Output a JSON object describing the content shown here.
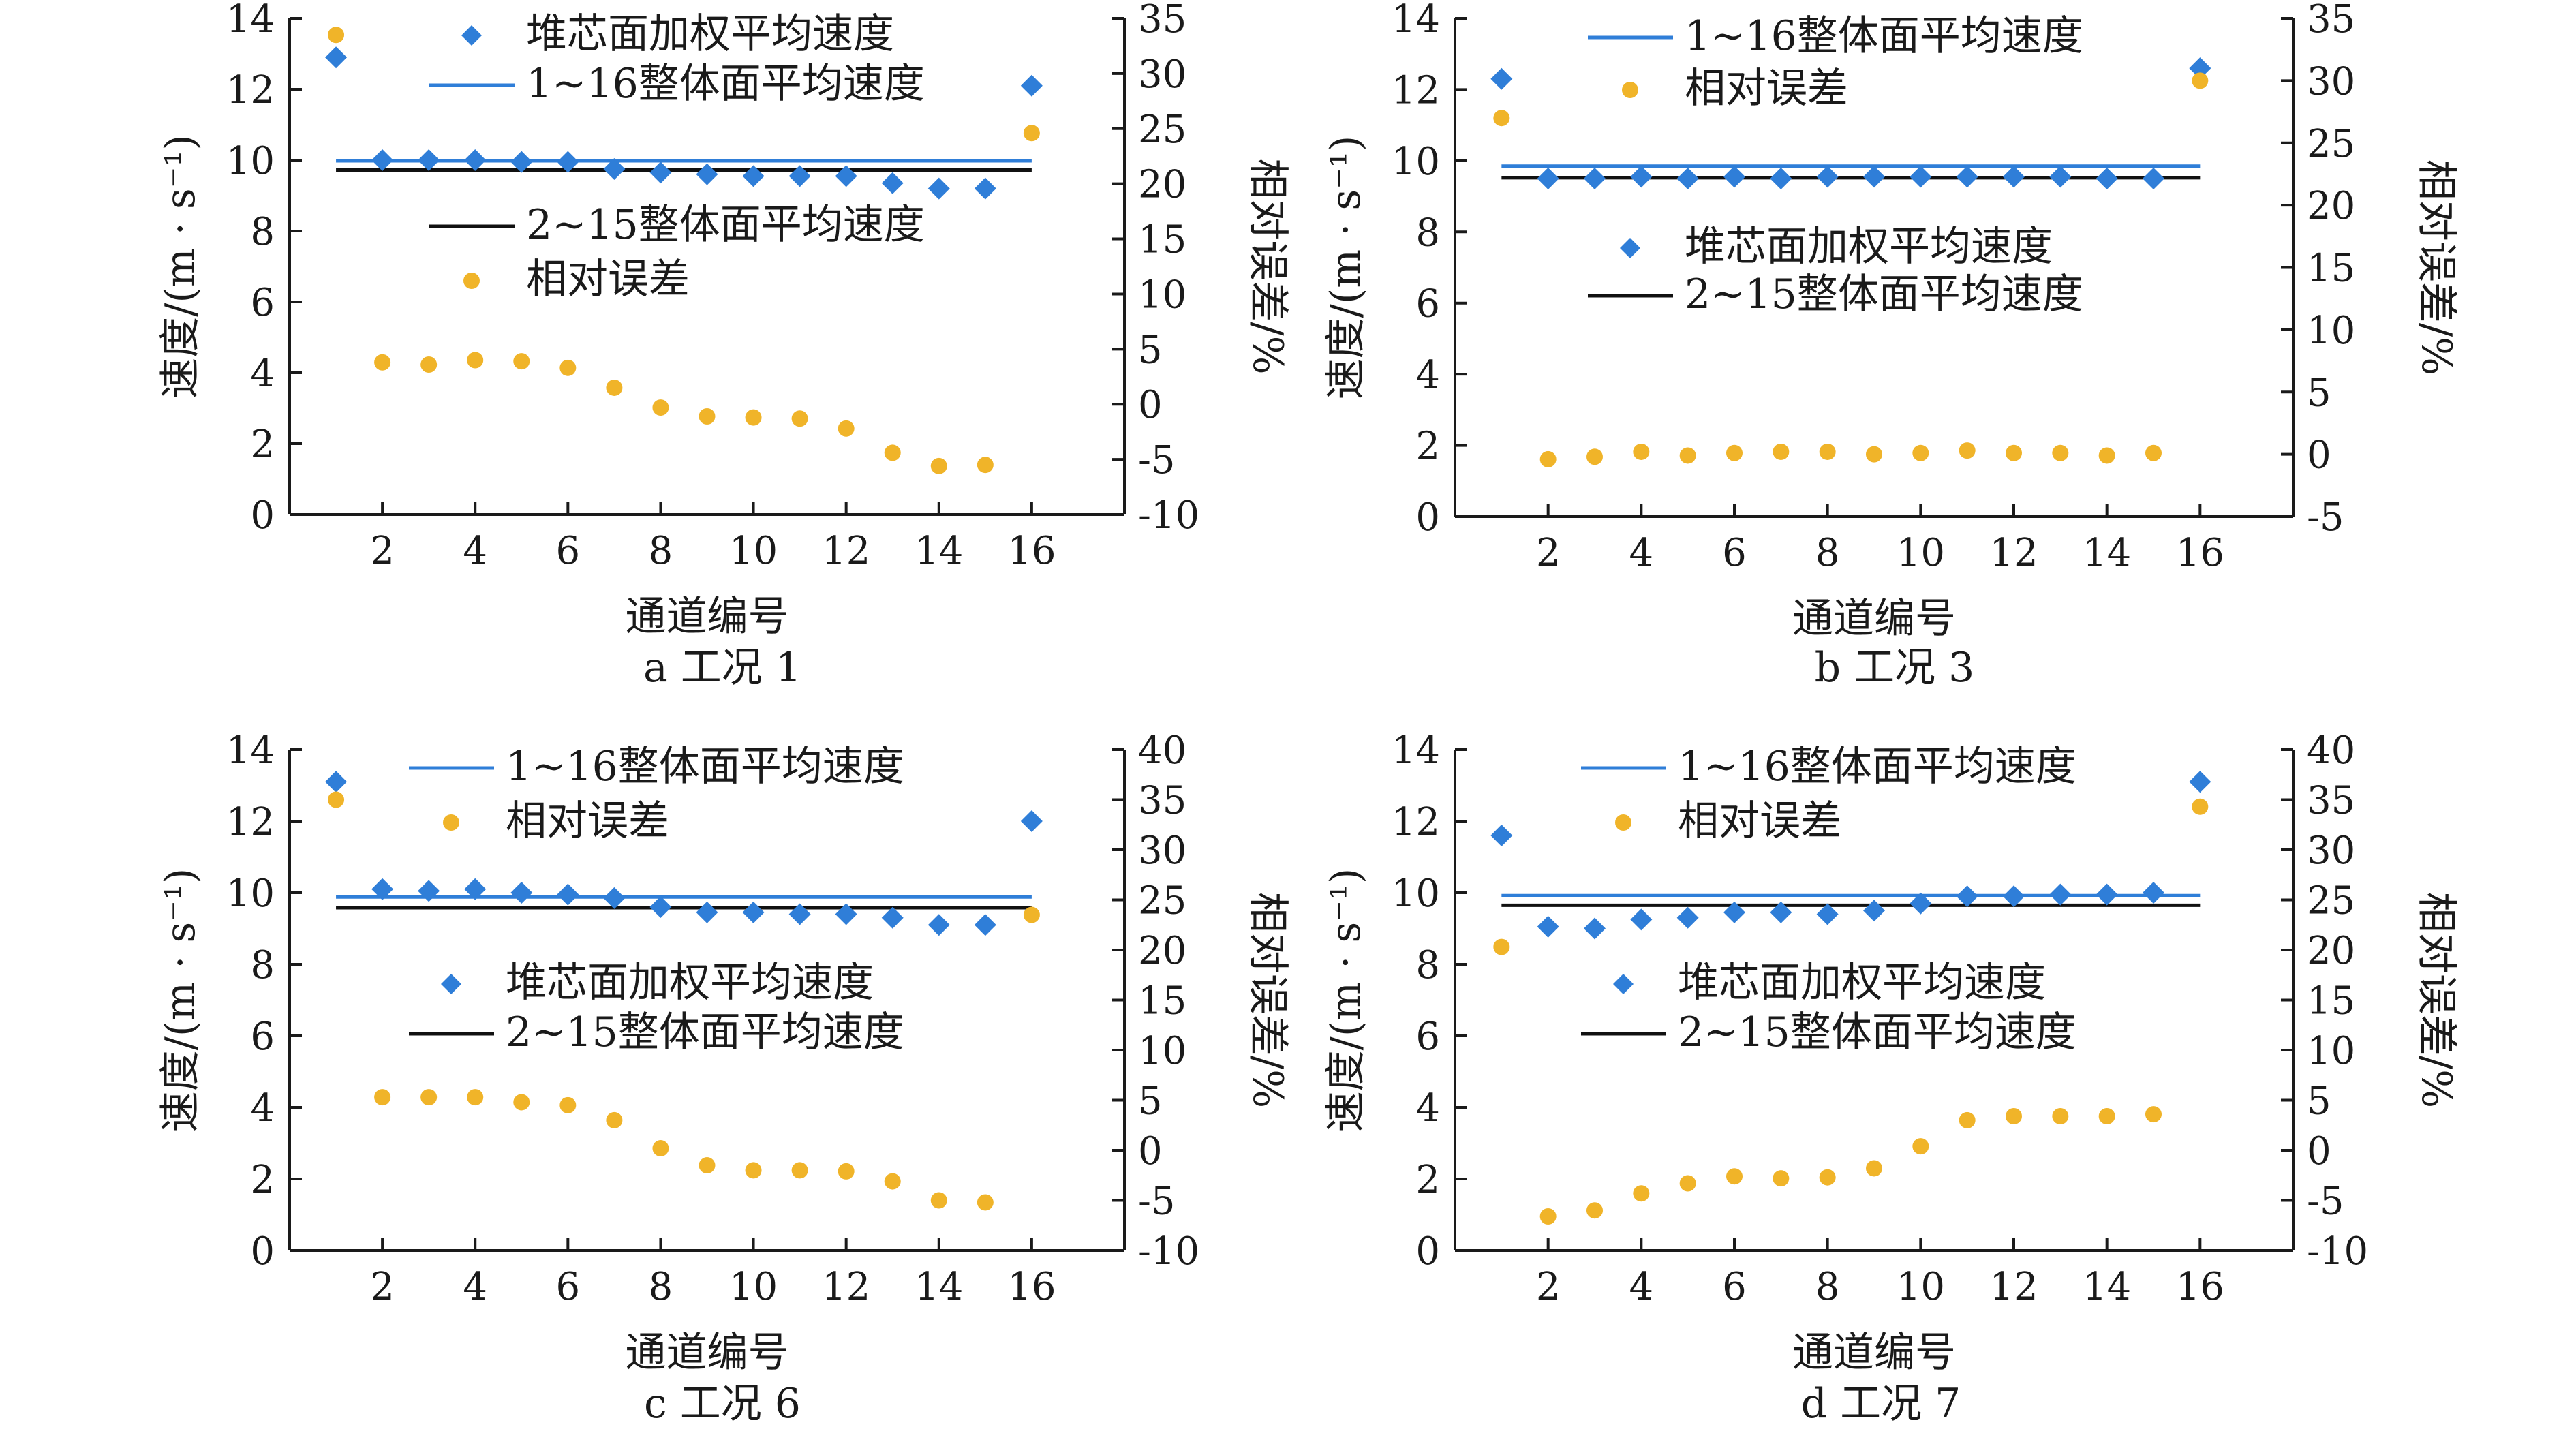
{
  "colors": {
    "overall_1_16": "#2f7ed8",
    "overall_2_15": "#111111",
    "weighted": "#2f7ed8",
    "error": "#f0b429",
    "axis": "#1a1a1a"
  },
  "chart_data": [
    {
      "type": "scatter",
      "caption": "a  工况 1",
      "xlabel": "通道编号",
      "ylabel": "速度/(m · s⁻¹)",
      "y2label": "相对误差/%",
      "xlim": [
        0,
        18
      ],
      "xticks": [
        2,
        4,
        6,
        8,
        10,
        12,
        14,
        16
      ],
      "ylim": [
        0,
        14
      ],
      "yticks": [
        0,
        2,
        4,
        6,
        8,
        10,
        12,
        14
      ],
      "y2lim": [
        -10,
        35
      ],
      "y2ticks": [
        -10,
        -5,
        0,
        5,
        10,
        15,
        20,
        25,
        30,
        35
      ],
      "legend": [
        {
          "key": "weighted",
          "label": "堆芯面加权平均速度",
          "marker": "diamond"
        },
        {
          "key": "overall_1_16",
          "label": "1~16整体面平均速度",
          "marker": "line"
        },
        {
          "key": "overall_2_15",
          "label": "2~15整体面平均速度",
          "marker": "line"
        },
        {
          "key": "error",
          "label": "相对误差",
          "marker": "circle"
        }
      ],
      "series": {
        "weighted": {
          "x": [
            1,
            2,
            3,
            4,
            5,
            6,
            7,
            8,
            9,
            10,
            11,
            12,
            13,
            14,
            15,
            16
          ],
          "y": [
            12.9,
            10.0,
            10.0,
            10.0,
            9.95,
            9.95,
            9.75,
            9.65,
            9.6,
            9.55,
            9.55,
            9.55,
            9.35,
            9.2,
            9.2,
            12.1
          ]
        },
        "overall_1_16": {
          "x": [
            1,
            16
          ],
          "y": [
            9.98,
            9.98
          ]
        },
        "overall_2_15": {
          "x": [
            1,
            16
          ],
          "y": [
            9.72,
            9.72
          ]
        },
        "error": {
          "x": [
            1,
            2,
            3,
            4,
            5,
            6,
            7,
            8,
            9,
            10,
            11,
            12,
            13,
            14,
            15,
            16
          ],
          "y": [
            33.5,
            3.8,
            3.6,
            4.0,
            3.9,
            3.3,
            1.5,
            -0.3,
            -1.1,
            -1.2,
            -1.3,
            -2.2,
            -4.4,
            -5.6,
            -5.5,
            24.6
          ]
        }
      }
    },
    {
      "type": "scatter",
      "caption": "b  工况 3",
      "xlabel": "通道编号",
      "ylabel": "速度/(m · s⁻¹)",
      "y2label": "相对误差/%",
      "xlim": [
        0,
        18
      ],
      "xticks": [
        2,
        4,
        6,
        8,
        10,
        12,
        14,
        16
      ],
      "ylim": [
        0,
        14
      ],
      "yticks": [
        0,
        2,
        4,
        6,
        8,
        10,
        12,
        14
      ],
      "y2lim": [
        -5,
        35
      ],
      "y2ticks": [
        -5,
        0,
        5,
        10,
        15,
        20,
        25,
        30,
        35
      ],
      "legend": [
        {
          "key": "overall_1_16",
          "label": "1~16整体面平均速度",
          "marker": "line"
        },
        {
          "key": "error",
          "label": "相对误差",
          "marker": "circle"
        },
        {
          "key": "weighted",
          "label": "堆芯面加权平均速度",
          "marker": "diamond"
        },
        {
          "key": "overall_2_15",
          "label": "2~15整体面平均速度",
          "marker": "line"
        }
      ],
      "series": {
        "weighted": {
          "x": [
            1,
            2,
            3,
            4,
            5,
            6,
            7,
            8,
            9,
            10,
            11,
            12,
            13,
            14,
            15,
            16
          ],
          "y": [
            12.3,
            9.5,
            9.5,
            9.55,
            9.5,
            9.55,
            9.5,
            9.55,
            9.55,
            9.55,
            9.55,
            9.55,
            9.55,
            9.5,
            9.5,
            12.6
          ]
        },
        "overall_1_16": {
          "x": [
            1,
            16
          ],
          "y": [
            9.85,
            9.85
          ]
        },
        "overall_2_15": {
          "x": [
            1,
            16
          ],
          "y": [
            9.52,
            9.52
          ]
        },
        "error": {
          "x": [
            1,
            2,
            3,
            4,
            5,
            6,
            7,
            8,
            9,
            10,
            11,
            12,
            13,
            14,
            15,
            16
          ],
          "y": [
            27.0,
            -0.4,
            -0.2,
            0.2,
            -0.1,
            0.1,
            0.2,
            0.2,
            0.0,
            0.1,
            0.3,
            0.1,
            0.1,
            -0.1,
            0.1,
            30.0
          ]
        }
      }
    },
    {
      "type": "scatter",
      "caption": "c  工况 6",
      "xlabel": "通道编号",
      "ylabel": "速度/(m · s⁻¹)",
      "y2label": "相对误差/%",
      "xlim": [
        0,
        18
      ],
      "xticks": [
        2,
        4,
        6,
        8,
        10,
        12,
        14,
        16
      ],
      "ylim": [
        0,
        14
      ],
      "yticks": [
        0,
        2,
        4,
        6,
        8,
        10,
        12,
        14
      ],
      "y2lim": [
        -10,
        40
      ],
      "y2ticks": [
        -10,
        -5,
        0,
        5,
        10,
        15,
        20,
        25,
        30,
        35,
        40
      ],
      "legend": [
        {
          "key": "overall_1_16",
          "label": "1~16整体面平均速度",
          "marker": "line"
        },
        {
          "key": "error",
          "label": "相对误差",
          "marker": "circle"
        },
        {
          "key": "weighted",
          "label": "堆芯面加权平均速度",
          "marker": "diamond"
        },
        {
          "key": "overall_2_15",
          "label": "2~15整体面平均速度",
          "marker": "line"
        }
      ],
      "series": {
        "weighted": {
          "x": [
            1,
            2,
            3,
            4,
            5,
            6,
            7,
            8,
            9,
            10,
            11,
            12,
            13,
            14,
            15,
            16
          ],
          "y": [
            13.1,
            10.1,
            10.05,
            10.1,
            10.0,
            9.95,
            9.85,
            9.6,
            9.45,
            9.45,
            9.4,
            9.4,
            9.3,
            9.1,
            9.1,
            12.0
          ]
        },
        "overall_1_16": {
          "x": [
            1,
            16
          ],
          "y": [
            9.88,
            9.88
          ]
        },
        "overall_2_15": {
          "x": [
            1,
            16
          ],
          "y": [
            9.58,
            9.58
          ]
        },
        "error": {
          "x": [
            1,
            2,
            3,
            4,
            5,
            6,
            7,
            8,
            9,
            10,
            11,
            12,
            13,
            14,
            15,
            16
          ],
          "y": [
            35.0,
            5.3,
            5.3,
            5.3,
            4.8,
            4.5,
            3.0,
            0.2,
            -1.5,
            -2.0,
            -2.0,
            -2.1,
            -3.1,
            -5.0,
            -5.2,
            23.5
          ]
        }
      }
    },
    {
      "type": "scatter",
      "caption": "d  工况 7",
      "xlabel": "通道编号",
      "ylabel": "速度/(m · s⁻¹)",
      "y2label": "相对误差/%",
      "xlim": [
        0,
        18
      ],
      "xticks": [
        2,
        4,
        6,
        8,
        10,
        12,
        14,
        16
      ],
      "ylim": [
        0,
        14
      ],
      "yticks": [
        0,
        2,
        4,
        6,
        8,
        10,
        12,
        14
      ],
      "y2lim": [
        -10,
        40
      ],
      "y2ticks": [
        -10,
        -5,
        0,
        5,
        10,
        15,
        20,
        25,
        30,
        35,
        40
      ],
      "legend": [
        {
          "key": "overall_1_16",
          "label": "1~16整体面平均速度",
          "marker": "line"
        },
        {
          "key": "error",
          "label": "相对误差",
          "marker": "circle"
        },
        {
          "key": "weighted",
          "label": "堆芯面加权平均速度",
          "marker": "diamond"
        },
        {
          "key": "overall_2_15",
          "label": "2~15整体面平均速度",
          "marker": "line"
        }
      ],
      "series": {
        "weighted": {
          "x": [
            1,
            2,
            3,
            4,
            5,
            6,
            7,
            8,
            9,
            10,
            11,
            12,
            13,
            14,
            15,
            16
          ],
          "y": [
            11.6,
            9.05,
            9.0,
            9.25,
            9.3,
            9.45,
            9.45,
            9.4,
            9.5,
            9.7,
            9.9,
            9.9,
            9.95,
            9.95,
            10.0,
            13.1
          ]
        },
        "overall_1_16": {
          "x": [
            1,
            16
          ],
          "y": [
            9.92,
            9.92
          ]
        },
        "overall_2_15": {
          "x": [
            1,
            16
          ],
          "y": [
            9.65,
            9.65
          ]
        },
        "error": {
          "x": [
            1,
            2,
            3,
            4,
            5,
            6,
            7,
            8,
            9,
            10,
            11,
            12,
            13,
            14,
            15,
            16
          ],
          "y": [
            20.3,
            -6.6,
            -6.0,
            -4.3,
            -3.3,
            -2.6,
            -2.8,
            -2.7,
            -1.8,
            0.4,
            3.0,
            3.4,
            3.4,
            3.4,
            3.6,
            34.3
          ]
        }
      }
    }
  ]
}
